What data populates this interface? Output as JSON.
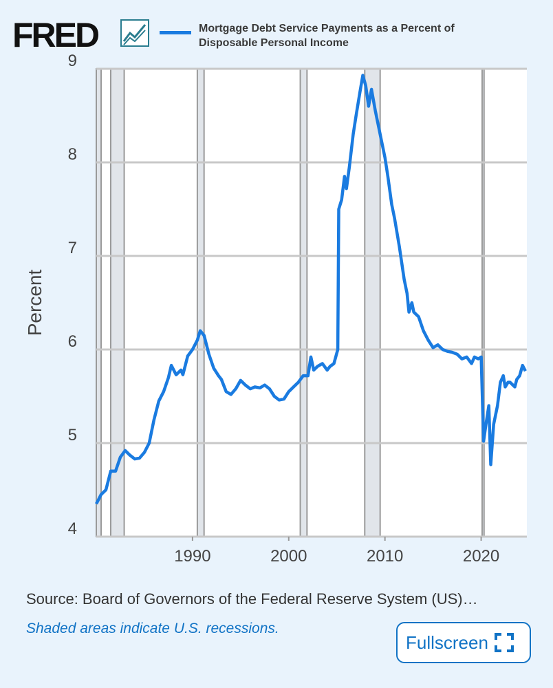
{
  "header": {
    "logo": "FRED"
  },
  "chart_data": {
    "type": "line",
    "y_axis_label": "Percent",
    "x": [
      1980.0,
      1980.5,
      1981.0,
      1981.5,
      1982.0,
      1982.5,
      1983.0,
      1983.5,
      1984.0,
      1984.5,
      1985.0,
      1985.5,
      1986.0,
      1986.5,
      1987.0,
      1987.5,
      1987.8,
      1988.3,
      1988.8,
      1989.0,
      1989.5,
      1990.0,
      1990.5,
      1990.8,
      1991.2,
      1991.7,
      1992.2,
      1992.7,
      1993.0,
      1993.5,
      1994.0,
      1994.5,
      1995.0,
      1995.5,
      1996.0,
      1996.5,
      1997.0,
      1997.5,
      1998.0,
      1998.5,
      1999.0,
      1999.5,
      2000.0,
      2000.5,
      2001.0,
      2001.5,
      2002.0,
      2002.3,
      2002.6,
      2003.0,
      2003.5,
      2004.0,
      2004.3,
      2004.7,
      2005.1,
      2005.2,
      2005.5,
      2005.8,
      2006.0,
      2006.3,
      2006.7,
      2007.0,
      2007.4,
      2007.7,
      2008.0,
      2008.3,
      2008.6,
      2009.0,
      2009.5,
      2010.0,
      2010.3,
      2010.7,
      2011.0,
      2011.5,
      2012.0,
      2012.3,
      2012.5,
      2012.8,
      2013.0,
      2013.5,
      2014.0,
      2014.5,
      2015.0,
      2015.5,
      2016.0,
      2016.5,
      2017.0,
      2017.5,
      2018.0,
      2018.5,
      2019.0,
      2019.3,
      2019.7,
      2020.0,
      2020.25,
      2020.5,
      2020.8,
      2021.0,
      2021.3,
      2021.7,
      2022.0,
      2022.3,
      2022.5,
      2022.8,
      2023.0,
      2023.5,
      2023.7,
      2024.0,
      2024.3,
      2024.6
    ],
    "series": [
      {
        "name": "Mortgage Debt Service Payments as a Percent of Disposable Personal Income",
        "color": "#1a7be0",
        "values": [
          4.35,
          4.45,
          4.5,
          4.7,
          4.7,
          4.85,
          4.92,
          4.87,
          4.83,
          4.84,
          4.9,
          5.0,
          5.25,
          5.45,
          5.55,
          5.7,
          5.83,
          5.73,
          5.78,
          5.73,
          5.93,
          6.0,
          6.1,
          6.2,
          6.15,
          5.95,
          5.8,
          5.72,
          5.68,
          5.55,
          5.52,
          5.58,
          5.67,
          5.62,
          5.58,
          5.6,
          5.59,
          5.62,
          5.58,
          5.5,
          5.46,
          5.47,
          5.55,
          5.6,
          5.65,
          5.72,
          5.72,
          5.92,
          5.78,
          5.82,
          5.85,
          5.78,
          5.82,
          5.85,
          6.0,
          7.5,
          7.6,
          7.85,
          7.72,
          7.95,
          8.3,
          8.5,
          8.75,
          8.93,
          8.82,
          8.6,
          8.78,
          8.55,
          8.3,
          8.05,
          7.85,
          7.55,
          7.4,
          7.1,
          6.75,
          6.6,
          6.4,
          6.5,
          6.4,
          6.35,
          6.2,
          6.1,
          6.02,
          6.05,
          6.0,
          5.98,
          5.97,
          5.95,
          5.9,
          5.92,
          5.85,
          5.92,
          5.9,
          5.92,
          5.02,
          5.2,
          5.4,
          4.77,
          5.2,
          5.4,
          5.65,
          5.72,
          5.6,
          5.65,
          5.65,
          5.6,
          5.68,
          5.72,
          5.83,
          5.77
        ]
      }
    ],
    "recessions": [
      [
        1980.0,
        1980.5
      ],
      [
        1981.5,
        1982.9
      ],
      [
        1990.5,
        1991.2
      ],
      [
        2001.2,
        2001.9
      ],
      [
        2007.9,
        2009.5
      ],
      [
        2020.1,
        2020.3
      ]
    ],
    "xlim": [
      1980,
      2024.75
    ],
    "xticks": [
      1990,
      2000,
      2010,
      2020
    ],
    "ylim": [
      4,
      9
    ],
    "yticks": [
      4,
      5,
      6,
      7,
      8,
      9
    ],
    "grid": true
  },
  "footer": {
    "source": "Source: Board of Governors of the Federal Reserve System (US)…",
    "note": "Shaded areas indicate U.S. recessions.",
    "button": "Fullscreen"
  }
}
